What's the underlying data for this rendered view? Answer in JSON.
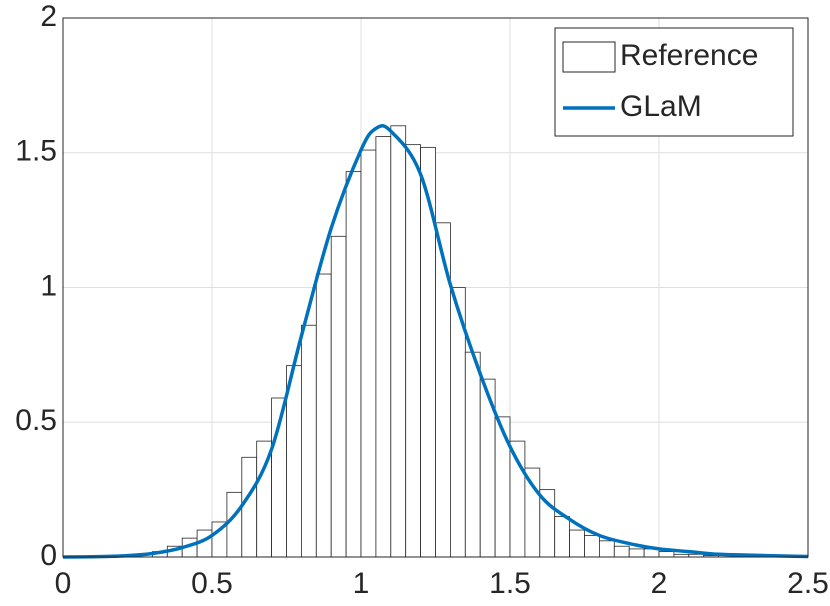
{
  "chart_data": {
    "type": "histogram",
    "bins": [
      0.2,
      0.25,
      0.3,
      0.35,
      0.4,
      0.45,
      0.5,
      0.55,
      0.6,
      0.65,
      0.7,
      0.75,
      0.8,
      0.85,
      0.9,
      0.95,
      1.0,
      1.05,
      1.1,
      1.15,
      1.2,
      1.25,
      1.3,
      1.35,
      1.4,
      1.45,
      1.5,
      1.55,
      1.6,
      1.65,
      1.7,
      1.75,
      1.8,
      1.85,
      1.9,
      1.95,
      2.0,
      2.05,
      2.1,
      2.15,
      2.2
    ],
    "counts": [
      0.005,
      0.01,
      0.02,
      0.04,
      0.07,
      0.1,
      0.13,
      0.24,
      0.37,
      0.43,
      0.59,
      0.71,
      0.86,
      1.05,
      1.19,
      1.43,
      1.51,
      1.56,
      1.6,
      1.53,
      1.52,
      1.24,
      1.0,
      0.76,
      0.66,
      0.52,
      0.43,
      0.33,
      0.25,
      0.15,
      0.1,
      0.08,
      0.06,
      0.04,
      0.03,
      0.03,
      0.02,
      0.01,
      0.01,
      0.005
    ],
    "hist_name": "Reference",
    "hist_color": "#ffffff",
    "line": {
      "name": "GLaM",
      "color": "#0072bd",
      "x": [
        0,
        0.1,
        0.2,
        0.3,
        0.4,
        0.5,
        0.6,
        0.7,
        0.8,
        0.9,
        1.0,
        1.05,
        1.1,
        1.2,
        1.3,
        1.4,
        1.5,
        1.6,
        1.7,
        1.8,
        1.9,
        2.0,
        2.1,
        2.2,
        2.3,
        2.4,
        2.5
      ],
      "values": [
        0,
        0.001,
        0.004,
        0.013,
        0.035,
        0.08,
        0.19,
        0.4,
        0.82,
        1.22,
        1.51,
        1.59,
        1.58,
        1.42,
        1.01,
        0.68,
        0.41,
        0.23,
        0.14,
        0.08,
        0.05,
        0.03,
        0.02,
        0.01,
        0.007,
        0.004,
        0.002
      ]
    },
    "xlim": [
      0,
      2.5
    ],
    "ylim": [
      0,
      2
    ],
    "xticks": [
      0,
      0.5,
      1,
      1.5,
      2,
      2.5
    ],
    "yticks": [
      0,
      0.5,
      1,
      1.5,
      2
    ],
    "grid": true,
    "legend": "top-right"
  }
}
